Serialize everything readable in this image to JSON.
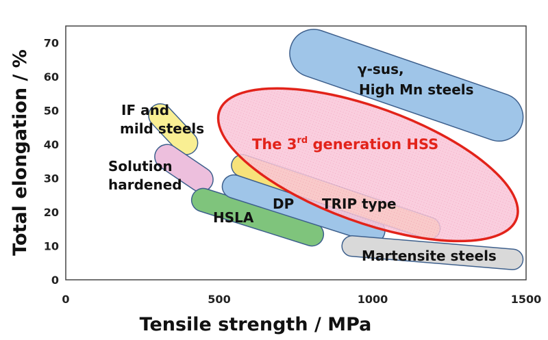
{
  "chart_data": {
    "type": "scatter",
    "title": "",
    "xlabel": "Tensile strength / MPa",
    "ylabel": "Total elongation / %",
    "xlim": [
      0,
      1500
    ],
    "ylim": [
      0,
      75
    ],
    "x_ticks": [
      "0",
      "500",
      "1000",
      "1500"
    ],
    "y_ticks": [
      "0",
      "10",
      "20",
      "30",
      "40",
      "50",
      "60",
      "70"
    ],
    "grid": false,
    "regions": [
      {
        "name": "γ-sus, High Mn steels",
        "label_lines": [
          "γ-sus,",
          "High Mn steels"
        ],
        "shape": "stadium",
        "color": "#9fc5e8",
        "strength_range_mpa": [
          730,
          1490
        ],
        "elongation_range_pct": [
          41,
          74
        ]
      },
      {
        "name": "IF and mild steels",
        "label_lines": [
          "IF and",
          "mild steels"
        ],
        "shape": "stadium",
        "color": "#f9ef93",
        "strength_range_mpa": [
          270,
          430
        ],
        "elongation_range_pct": [
          37,
          52
        ]
      },
      {
        "name": "Solution hardened",
        "label_lines": [
          "Solution",
          "hardened"
        ],
        "shape": "stadium",
        "color": "#edbfdd",
        "strength_range_mpa": [
          290,
          480
        ],
        "elongation_range_pct": [
          26,
          40
        ]
      },
      {
        "name": "HSLA",
        "label_lines": [
          "HSLA"
        ],
        "shape": "stadium",
        "color": "#7fc47c",
        "strength_range_mpa": [
          410,
          840
        ],
        "elongation_range_pct": [
          10,
          27
        ]
      },
      {
        "name": "DP",
        "label_lines": [
          "DP"
        ],
        "shape": "stadium",
        "color": "#9fc5e8",
        "strength_range_mpa": [
          510,
          1040
        ],
        "elongation_range_pct": [
          11,
          31
        ]
      },
      {
        "name": "TRIP type",
        "label_lines": [
          "TRIP type"
        ],
        "shape": "stadium",
        "color": "#f7e27a",
        "strength_range_mpa": [
          540,
          1220
        ],
        "elongation_range_pct": [
          12,
          37
        ]
      },
      {
        "name": "Martensite steels",
        "label_lines": [
          "Martensite steels"
        ],
        "shape": "stadium",
        "color": "#d9d9d9",
        "strength_range_mpa": [
          900,
          1490
        ],
        "elongation_range_pct": [
          3,
          13
        ]
      },
      {
        "name": "The 3rd generation HSS",
        "label_lines": [
          "The 3rd generation HSS"
        ],
        "label_parts": [
          "The 3",
          "rd",
          " generation HSS"
        ],
        "shape": "ellipse",
        "color": "#f9c6d8",
        "outline_color": "#e2231a",
        "strength_range_mpa": [
          470,
          1500
        ],
        "elongation_range_pct": [
          12,
          56
        ]
      }
    ]
  }
}
